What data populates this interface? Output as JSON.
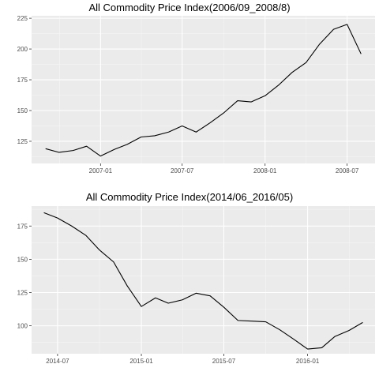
{
  "chart_data": [
    {
      "type": "line",
      "title": "All Commodity Price Index(2006/09_2008/8)",
      "xlabel": "",
      "ylabel": "",
      "x_axis_type": "date",
      "xlim": [
        "2006-08-01",
        "2008-09-01"
      ],
      "ylim": [
        107,
        227
      ],
      "x_ticks": [
        {
          "date": "2007-01-01",
          "label": "2007-01"
        },
        {
          "date": "2007-07-01",
          "label": "2007-07"
        },
        {
          "date": "2008-01-01",
          "label": "2008-01"
        },
        {
          "date": "2008-07-01",
          "label": "2008-07"
        }
      ],
      "y_ticks": [
        125,
        150,
        175,
        200,
        225
      ],
      "grid": true,
      "background": "#ebebeb",
      "line_color": "#000000",
      "series": [
        {
          "x": [
            "2006-09-01",
            "2006-10-01",
            "2006-11-01",
            "2006-12-01",
            "2007-01-01",
            "2007-02-01",
            "2007-03-01",
            "2007-04-01",
            "2007-05-01",
            "2007-06-01",
            "2007-07-01",
            "2007-08-01",
            "2007-09-01",
            "2007-10-01",
            "2007-11-01",
            "2007-12-01",
            "2008-01-01",
            "2008-02-01",
            "2008-03-01",
            "2008-04-01",
            "2008-05-01",
            "2008-06-01",
            "2008-07-01",
            "2008-08-01"
          ],
          "y": [
            119,
            116,
            117.5,
            121,
            113,
            118.5,
            122.5,
            128.5,
            129.5,
            132.5,
            137.5,
            132.5,
            140,
            148,
            158,
            157,
            162,
            171,
            181,
            189,
            204,
            216,
            220,
            196
          ]
        }
      ]
    },
    {
      "type": "line",
      "title": "All Commodity Price Index(2014/06_2016/05)",
      "xlabel": "",
      "ylabel": "",
      "x_axis_type": "date",
      "xlim": [
        "2014-05-05",
        "2016-05-28"
      ],
      "ylim": [
        79,
        190
      ],
      "x_ticks": [
        {
          "date": "2014-07-01",
          "label": "2014-07"
        },
        {
          "date": "2015-01-01",
          "label": "2015-01"
        },
        {
          "date": "2015-07-01",
          "label": "2015-07"
        },
        {
          "date": "2016-01-01",
          "label": "2016-01"
        }
      ],
      "y_ticks": [
        100,
        125,
        150,
        175
      ],
      "grid": true,
      "background": "#ebebeb",
      "line_color": "#000000",
      "series": [
        {
          "x": [
            "2014-06-01",
            "2014-07-01",
            "2014-08-01",
            "2014-09-01",
            "2014-10-01",
            "2014-11-01",
            "2014-12-01",
            "2015-01-01",
            "2015-02-01",
            "2015-03-01",
            "2015-04-01",
            "2015-05-01",
            "2015-06-01",
            "2015-07-01",
            "2015-08-01",
            "2015-09-01",
            "2015-10-01",
            "2015-11-01",
            "2015-12-01",
            "2016-01-01",
            "2016-02-01",
            "2016-03-01",
            "2016-04-01",
            "2016-05-01"
          ],
          "y": [
            185,
            181,
            175,
            168,
            157,
            148,
            130,
            114.5,
            121,
            117,
            119.5,
            124.5,
            122.5,
            114,
            104,
            103.5,
            103,
            97,
            90,
            82.5,
            83.5,
            92,
            96.5,
            102.5
          ]
        }
      ]
    }
  ]
}
